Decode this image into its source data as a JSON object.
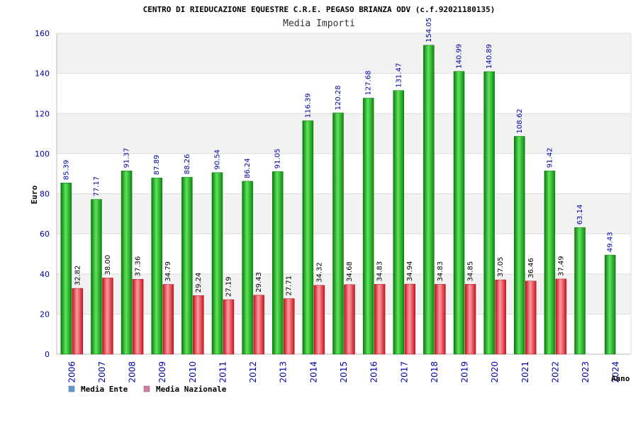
{
  "chart_data": {
    "type": "bar",
    "title": "CENTRO DI RIEDUCAZIONE EQUESTRE C.R.E. PEGASO BRIANZA ODV (c.f.92021180135)",
    "subtitle": "Media Importi",
    "xlabel": "Anno",
    "ylabel": "Euro",
    "ylim": [
      0,
      160
    ],
    "yticks": [
      0,
      20,
      40,
      60,
      80,
      100,
      120,
      140,
      160
    ],
    "categories": [
      "2006",
      "2007",
      "2008",
      "2009",
      "2010",
      "2011",
      "2012",
      "2013",
      "2014",
      "2015",
      "2016",
      "2017",
      "2018",
      "2019",
      "2020",
      "2021",
      "2022",
      "2023",
      "2024"
    ],
    "series": [
      {
        "name": "Media Ente",
        "legend_color": "#5b9bd5",
        "bar_color": "#11aa11",
        "values": [
          85.39,
          77.17,
          91.37,
          87.89,
          88.26,
          90.54,
          86.24,
          91.05,
          116.39,
          120.28,
          127.68,
          131.47,
          154.05,
          140.99,
          140.89,
          108.62,
          91.42,
          63.14,
          49.43
        ],
        "labels": [
          "85.39",
          "77.17",
          "91.37",
          "87.89",
          "88.26",
          "90.54",
          "86.24",
          "91.05",
          "116.39",
          "120.28",
          "127.68",
          "131.47",
          "154.05",
          "140.99",
          "140.89",
          "108.62",
          "91.42",
          "63.14",
          "49.43"
        ]
      },
      {
        "name": "Media Nazionale",
        "legend_color": "#d97aa9",
        "bar_color": "#e83340",
        "values": [
          32.82,
          38.0,
          37.36,
          34.79,
          29.24,
          27.19,
          29.43,
          27.71,
          34.32,
          34.68,
          34.83,
          34.94,
          34.83,
          34.85,
          37.05,
          36.46,
          37.49,
          null,
          null
        ],
        "labels": [
          "32.82",
          "38.00",
          "37.36",
          "34.79",
          "29.24",
          "27.19",
          "29.43",
          "27.71",
          "34.32",
          "34.68",
          "34.83",
          "34.94",
          "34.83",
          "34.85",
          "37.05",
          "36.46",
          "37.49",
          null,
          null
        ]
      }
    ],
    "grid": true,
    "legend": "bottom-left"
  }
}
